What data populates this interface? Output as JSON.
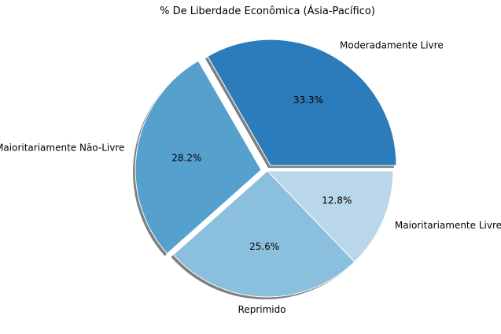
{
  "chart_data": {
    "type": "pie",
    "title": "% De Liberdade Econômica (Ásia-Pacífico)",
    "slices": [
      {
        "label": "Moderadamente Livre",
        "value": 33.3,
        "pct_label": "33.3%",
        "color": "#2c7bba",
        "exploded": true
      },
      {
        "label": "Maioritariamente Não-Livre",
        "value": 28.2,
        "pct_label": "28.2%",
        "color": "#56a0ce",
        "exploded": true
      },
      {
        "label": "Reprimido",
        "value": 25.6,
        "pct_label": "25.6%",
        "color": "#8abfde",
        "exploded": false
      },
      {
        "label": "Maioritariamente Livre",
        "value": 12.8,
        "pct_label": "12.8%",
        "color": "#b9d6eb",
        "exploded": false
      }
    ],
    "start_angle_deg": 0,
    "direction": "counterclockwise",
    "shadow": true,
    "legend": "none"
  }
}
